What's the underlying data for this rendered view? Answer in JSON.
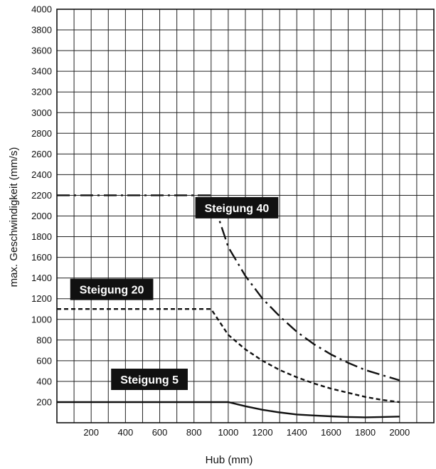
{
  "chart_data": {
    "type": "line",
    "title": "",
    "xlabel": "Hub (mm)",
    "ylabel": "max. Geschwindigkeit (mm/s)",
    "xlim": [
      0,
      2200
    ],
    "ylim": [
      0,
      4000
    ],
    "x_ticks": [
      200,
      400,
      600,
      800,
      1000,
      1200,
      1400,
      1600,
      1800,
      2000
    ],
    "y_ticks": [
      200,
      400,
      600,
      800,
      1000,
      1200,
      1400,
      1600,
      1800,
      2000,
      2200,
      2400,
      2600,
      2800,
      3000,
      3200,
      3400,
      3600,
      3800,
      4000
    ],
    "grid": true,
    "series": [
      {
        "name": "Steigung 40",
        "style": "dash-dot",
        "color": "#111111",
        "x": [
          0,
          900,
          1000,
          1100,
          1200,
          1300,
          1400,
          1500,
          1600,
          1700,
          1800,
          1900,
          2000
        ],
        "y": [
          2200,
          2200,
          1700,
          1420,
          1200,
          1030,
          880,
          760,
          660,
          580,
          510,
          460,
          410
        ]
      },
      {
        "name": "Steigung 20",
        "style": "dashed",
        "color": "#111111",
        "x": [
          0,
          900,
          1000,
          1100,
          1200,
          1300,
          1400,
          1500,
          1600,
          1700,
          1800,
          1900,
          2000
        ],
        "y": [
          1100,
          1100,
          850,
          710,
          600,
          510,
          440,
          380,
          330,
          290,
          250,
          220,
          200
        ]
      },
      {
        "name": "Steigung 5",
        "style": "solid",
        "color": "#111111",
        "x": [
          0,
          1000,
          1100,
          1200,
          1300,
          1400,
          1500,
          1600,
          1700,
          1800,
          1900,
          2000
        ],
        "y": [
          200,
          200,
          160,
          125,
          100,
          80,
          70,
          62,
          56,
          52,
          56,
          60
        ]
      }
    ]
  }
}
